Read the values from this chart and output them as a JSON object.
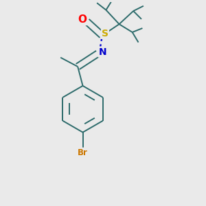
{
  "background_color": "#eaeaea",
  "bond_color": "#2d6b6b",
  "atom_colors": {
    "O": "#ff0000",
    "S": "#ccaa00",
    "N": "#0000cc",
    "Br": "#cc7700",
    "C": "#333333"
  },
  "bond_width": 1.4,
  "fig_size": [
    3.0,
    3.0
  ],
  "dpi": 100
}
